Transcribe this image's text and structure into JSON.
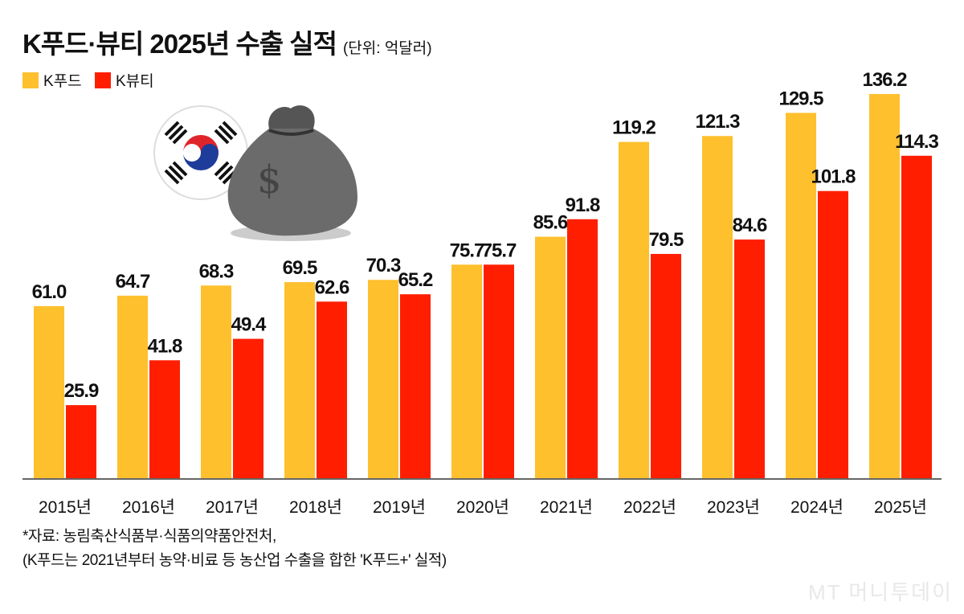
{
  "title": "K푸드·뷰티 2025년 수출 실적",
  "unit": "(단위: 억달러)",
  "source_line1": "*자료: 농림축산식품부·식품의약품안전처,",
  "source_line2": "(K푸드는 2021년부터 농약·비료 등 농산업 수출을 합한 'K푸드+' 실적)",
  "logo": "MT 머니투데이",
  "illustration_icons": [
    "korean-flag-icon",
    "money-bag-icon"
  ],
  "colors": {
    "kfood": "#FFC02E",
    "kbeauty": "#FF1F00"
  },
  "chart_data": {
    "type": "bar",
    "title": "K푸드·뷰티 2025년 수출 실적",
    "categories": [
      "2015년",
      "2016년",
      "2017년",
      "2018년",
      "2019년",
      "2020년",
      "2021년",
      "2022년",
      "2023년",
      "2024년",
      "2025년"
    ],
    "series": [
      {
        "name": "K푸드",
        "values": [
          61.0,
          64.7,
          68.3,
          69.5,
          70.3,
          75.7,
          85.6,
          119.2,
          121.3,
          129.5,
          136.2
        ]
      },
      {
        "name": "K뷰티",
        "values": [
          25.9,
          41.8,
          49.4,
          62.6,
          65.2,
          75.7,
          91.8,
          79.5,
          84.6,
          101.8,
          114.3
        ]
      }
    ],
    "ylim": [
      0,
      140
    ],
    "grid": false,
    "legend_position": "top-left",
    "data_labels": true
  }
}
